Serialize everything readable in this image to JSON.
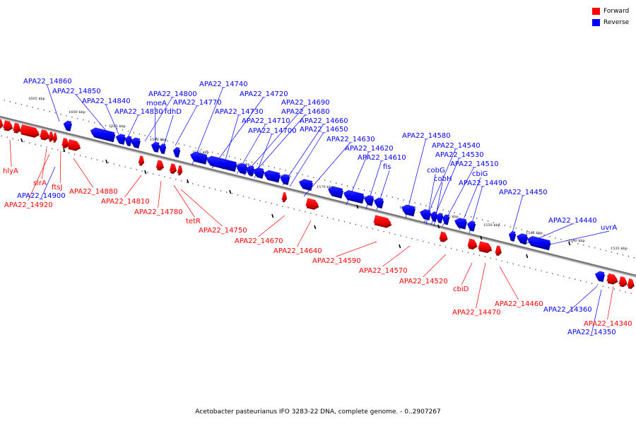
{
  "legend": [
    {
      "label": "Forward",
      "color": "#ff0000"
    },
    {
      "label": "Reverse",
      "color": "#0000ff"
    }
  ],
  "caption": "Acetobacter pasteurianus IFO 3283-22 DNA, complete genome. - 0..2907267",
  "colors": {
    "forward": "#ff0000",
    "reverse": "#0000ff",
    "backbone": "#777777"
  },
  "ticks": [
    "1605 kbp",
    "1600 kbp",
    "1595 kbp",
    "1590 kbp",
    "1585 kbp",
    "1580 kbp",
    "1575 kbp",
    "1570 kbp",
    "1565 kbp",
    "1560 kbp",
    "1555 kbp",
    "1550 kbp",
    "1545 kbp",
    "1540 kbp",
    "1535 kbp"
  ],
  "reverse_labels": [
    "APA22_14860",
    "APA22_14850",
    "APA22_14840",
    "APA22_14830",
    "APA22_14800",
    "moeA",
    "fdhD",
    "APA22_14770",
    "APA22_14740",
    "APA22_14720",
    "APA22_14730",
    "APA22_14690",
    "APA22_14680",
    "APA22_14710",
    "APA22_14660",
    "APA22_14700",
    "APA22_14650",
    "APA22_14630",
    "APA22_14620",
    "APA22_14610",
    "fis",
    "APA22_14580",
    "APA22_14540",
    "APA22_14530",
    "cobG",
    "APA22_14510",
    "cobH",
    "cbiG",
    "APA22_14490",
    "APA22_14450",
    "APA22_14440",
    "uvrA",
    "APA22_14900",
    "APA22_14360",
    "APA22_14350"
  ],
  "forward_labels": [
    "hlyA",
    "sirA",
    "ftsJ",
    "APA22_14920",
    "APA22_14880",
    "APA22_14810",
    "APA22_14780",
    "tetR",
    "APA22_14750",
    "APA22_14670",
    "APA22_14640",
    "APA22_14590",
    "APA22_14570",
    "APA22_14520",
    "cbiD",
    "APA22_14470",
    "APA22_14460",
    "APA22_14340"
  ]
}
